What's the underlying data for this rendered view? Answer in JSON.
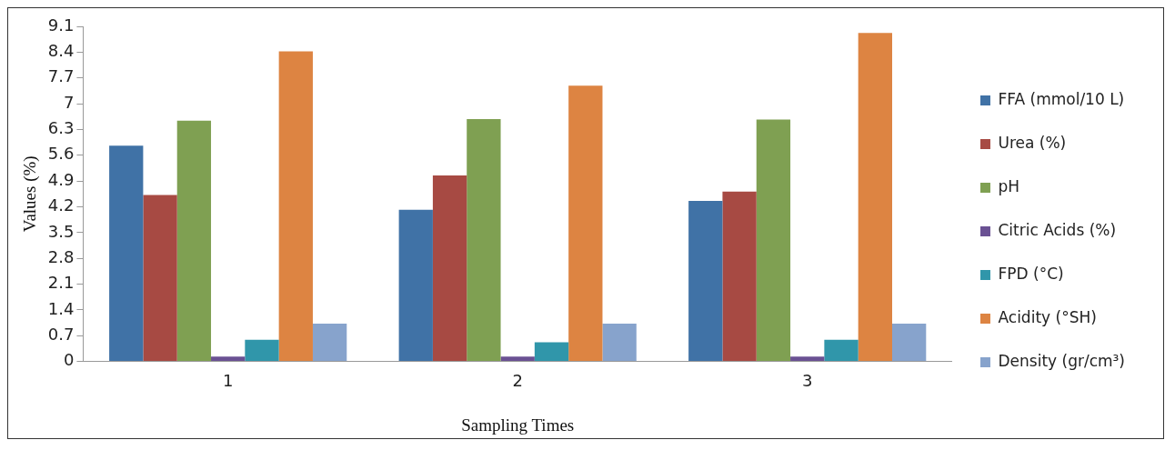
{
  "chart_data": {
    "type": "bar",
    "xlabel": "Sampling Times",
    "ylabel": "Values (%)",
    "categories": [
      "1",
      "2",
      "3"
    ],
    "series": [
      {
        "name": "FFA (mmol/10 L)",
        "color": "#4072a6",
        "values": [
          5.86,
          4.12,
          4.36
        ]
      },
      {
        "name": "Urea (%)",
        "color": "#a74a43",
        "values": [
          4.52,
          5.05,
          4.61
        ]
      },
      {
        "name": "pH",
        "color": "#7fa052",
        "values": [
          6.54,
          6.58,
          6.57
        ]
      },
      {
        "name": "Citric Acids (%)",
        "color": "#6a5193",
        "values": [
          0.13,
          0.13,
          0.13
        ]
      },
      {
        "name": "FPD (°C)",
        "color": "#3096aa",
        "values": [
          0.59,
          0.52,
          0.59
        ]
      },
      {
        "name": "Acidity (°SH)",
        "color": "#dd8442",
        "values": [
          8.42,
          7.49,
          8.92
        ]
      },
      {
        "name": "Density (gr/cm³)",
        "color": "#87a3cc",
        "values": [
          1.03,
          1.03,
          1.03
        ]
      }
    ],
    "ylim": [
      0,
      9.1
    ],
    "yticks": [
      0,
      0.7,
      1.4,
      2.1,
      2.8,
      3.5,
      4.2,
      4.9,
      5.6,
      6.3,
      7,
      7.7,
      8.4,
      9.1
    ],
    "legend": "right"
  }
}
